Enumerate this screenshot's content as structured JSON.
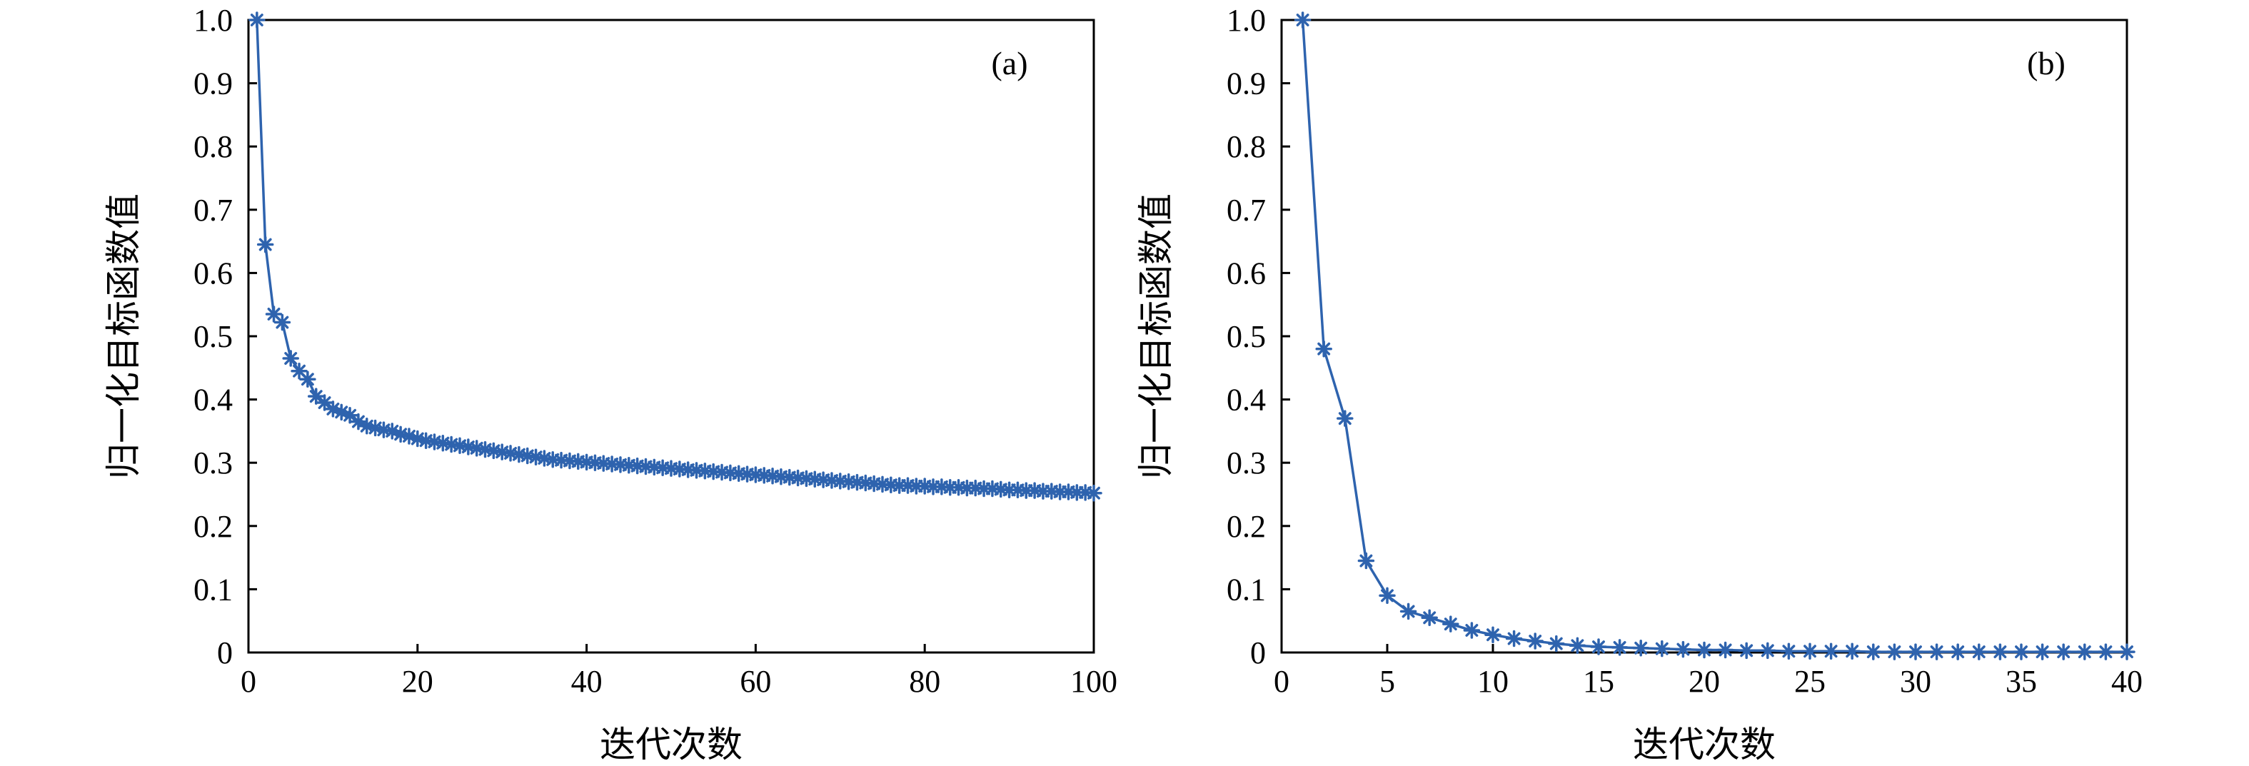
{
  "colors": {
    "series": "#2e63ae",
    "axis": "#000000",
    "background": "#ffffff"
  },
  "marker": "asterisk",
  "chart_data": [
    {
      "type": "line",
      "panel_label": "(a)",
      "xlabel": "迭代次数",
      "ylabel": "归一化目标函数值",
      "xlim": [
        0,
        100
      ],
      "ylim": [
        0,
        1.0
      ],
      "xticks": [
        0,
        20,
        40,
        60,
        80,
        100
      ],
      "xtick_labels": [
        "0",
        "20",
        "40",
        "60",
        "80",
        "100"
      ],
      "yticks": [
        0,
        0.1,
        0.2,
        0.3,
        0.4,
        0.5,
        0.6,
        0.7,
        0.8,
        0.9,
        1.0
      ],
      "ytick_labels": [
        "0",
        "0.1",
        "0.2",
        "0.3",
        "0.4",
        "0.5",
        "0.6",
        "0.7",
        "0.8",
        "0.9",
        "1.0"
      ],
      "grid": false,
      "series": [
        {
          "x": [
            1,
            2,
            3,
            4,
            5,
            6,
            7,
            8,
            9,
            10,
            11,
            12,
            13,
            14,
            15,
            16,
            17,
            18,
            19,
            20,
            21,
            22,
            23,
            24,
            25,
            26,
            27,
            28,
            29,
            30,
            31,
            32,
            33,
            34,
            35,
            36,
            37,
            38,
            39,
            40,
            41,
            42,
            43,
            44,
            45,
            46,
            47,
            48,
            49,
            50,
            51,
            52,
            53,
            54,
            55,
            56,
            57,
            58,
            59,
            60,
            61,
            62,
            63,
            64,
            65,
            66,
            67,
            68,
            69,
            70,
            71,
            72,
            73,
            74,
            75,
            76,
            77,
            78,
            79,
            80,
            81,
            82,
            83,
            84,
            85,
            86,
            87,
            88,
            89,
            90,
            91,
            92,
            93,
            94,
            95,
            96,
            97,
            98,
            99,
            100
          ],
          "y": [
            1.0,
            0.645,
            0.535,
            0.522,
            0.465,
            0.445,
            0.432,
            0.405,
            0.395,
            0.385,
            0.38,
            0.375,
            0.365,
            0.358,
            0.355,
            0.352,
            0.35,
            0.345,
            0.342,
            0.338,
            0.335,
            0.333,
            0.331,
            0.329,
            0.327,
            0.325,
            0.323,
            0.321,
            0.319,
            0.317,
            0.315,
            0.313,
            0.311,
            0.309,
            0.307,
            0.305,
            0.304,
            0.303,
            0.302,
            0.301,
            0.3,
            0.299,
            0.298,
            0.297,
            0.296,
            0.295,
            0.294,
            0.293,
            0.292,
            0.291,
            0.29,
            0.289,
            0.288,
            0.287,
            0.286,
            0.285,
            0.284,
            0.283,
            0.282,
            0.281,
            0.28,
            0.279,
            0.278,
            0.277,
            0.276,
            0.275,
            0.274,
            0.273,
            0.272,
            0.271,
            0.27,
            0.269,
            0.268,
            0.267,
            0.266,
            0.265,
            0.264,
            0.264,
            0.263,
            0.263,
            0.262,
            0.262,
            0.261,
            0.261,
            0.26,
            0.26,
            0.259,
            0.259,
            0.258,
            0.257,
            0.257,
            0.256,
            0.256,
            0.255,
            0.255,
            0.254,
            0.254,
            0.253,
            0.253,
            0.252
          ]
        }
      ]
    },
    {
      "type": "line",
      "panel_label": "(b)",
      "xlabel": "迭代次数",
      "ylabel": "归一化目标函数值",
      "xlim": [
        0,
        40
      ],
      "ylim": [
        0,
        1.0
      ],
      "xticks": [
        0,
        5,
        10,
        15,
        20,
        25,
        30,
        35,
        40
      ],
      "xtick_labels": [
        "0",
        "5",
        "10",
        "15",
        "20",
        "25",
        "30",
        "35",
        "40"
      ],
      "yticks": [
        0,
        0.1,
        0.2,
        0.3,
        0.4,
        0.5,
        0.6,
        0.7,
        0.8,
        0.9,
        1.0
      ],
      "ytick_labels": [
        "0",
        "0.1",
        "0.2",
        "0.3",
        "0.4",
        "0.5",
        "0.6",
        "0.7",
        "0.8",
        "0.9",
        "1.0"
      ],
      "grid": false,
      "series": [
        {
          "x": [
            1,
            2,
            3,
            4,
            5,
            6,
            7,
            8,
            9,
            10,
            11,
            12,
            13,
            14,
            15,
            16,
            17,
            18,
            19,
            20,
            21,
            22,
            23,
            24,
            25,
            26,
            27,
            28,
            29,
            30,
            31,
            32,
            33,
            34,
            35,
            36,
            37,
            38,
            39,
            40
          ],
          "y": [
            1.0,
            0.48,
            0.37,
            0.145,
            0.09,
            0.065,
            0.055,
            0.045,
            0.035,
            0.028,
            0.022,
            0.018,
            0.014,
            0.011,
            0.009,
            0.008,
            0.007,
            0.006,
            0.005,
            0.004,
            0.004,
            0.003,
            0.003,
            0.002,
            0.002,
            0.002,
            0.002,
            0.001,
            0.001,
            0.001,
            0.001,
            0.001,
            0.001,
            0.001,
            0.001,
            0.001,
            0.001,
            0.001,
            0.001,
            0.001
          ]
        }
      ]
    }
  ]
}
